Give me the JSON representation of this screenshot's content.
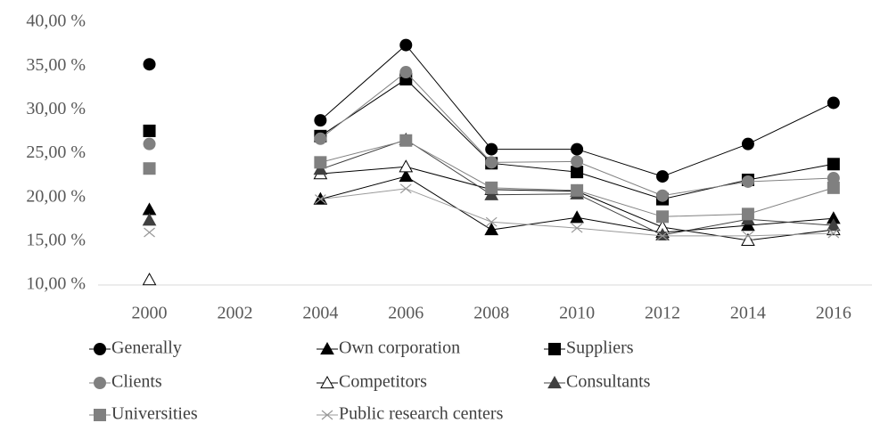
{
  "chart_data": {
    "type": "line",
    "x": [
      2000,
      2002,
      2004,
      2006,
      2008,
      2010,
      2012,
      2014,
      2016
    ],
    "xlim": [
      1998.8,
      2016.9
    ],
    "xticks": [
      2000,
      2002,
      2004,
      2006,
      2008,
      2010,
      2012,
      2014,
      2016
    ],
    "ylim": [
      10,
      40
    ],
    "yticks": [
      {
        "value": 10,
        "label": "10,00 %"
      },
      {
        "value": 15,
        "label": "15,00 %"
      },
      {
        "value": 20,
        "label": "20,00 %"
      },
      {
        "value": 25,
        "label": "25,00 %"
      },
      {
        "value": 30,
        "label": "30,00 %"
      },
      {
        "value": 35,
        "label": "35,00 %"
      },
      {
        "value": 40,
        "label": "40,00 %"
      }
    ],
    "grid": false,
    "legend": "bottom",
    "series": [
      {
        "name": "Generally",
        "color": "#000000",
        "marker": "circle",
        "values": [
          35.2,
          null,
          28.8,
          37.4,
          25.5,
          25.5,
          22.4,
          26.1,
          30.8
        ]
      },
      {
        "name": "Own corporation",
        "color": "#000000",
        "marker": "triangle",
        "values": [
          18.6,
          null,
          19.8,
          22.4,
          16.3,
          17.7,
          16.0,
          16.8,
          17.6
        ]
      },
      {
        "name": "Suppliers",
        "color": "#000000",
        "marker": "square",
        "values": [
          27.6,
          null,
          27.0,
          33.5,
          23.9,
          22.9,
          19.8,
          22.0,
          23.8
        ]
      },
      {
        "name": "Clients",
        "color": "#808080",
        "marker": "circle",
        "values": [
          26.1,
          null,
          26.7,
          34.3,
          24.0,
          24.1,
          20.2,
          21.8,
          22.2
        ]
      },
      {
        "name": "Competitors",
        "color": "#000000",
        "marker": "open-triangle",
        "values": [
          10.6,
          null,
          22.7,
          23.5,
          20.9,
          20.7,
          16.6,
          15.1,
          16.3
        ]
      },
      {
        "name": "Consultants",
        "color": "#404040",
        "marker": "triangle",
        "values": [
          17.4,
          null,
          23.2,
          26.6,
          20.3,
          20.4,
          15.7,
          17.5,
          16.8
        ]
      },
      {
        "name": "Universities",
        "color": "#808080",
        "marker": "square",
        "values": [
          23.3,
          null,
          24.0,
          26.5,
          21.1,
          20.8,
          17.8,
          18.1,
          21.1
        ]
      },
      {
        "name": "Public research centers",
        "color": "#999999",
        "marker": "cross",
        "values": [
          16.0,
          null,
          19.8,
          21.0,
          17.2,
          16.5,
          15.6,
          15.6,
          15.9
        ]
      }
    ]
  }
}
